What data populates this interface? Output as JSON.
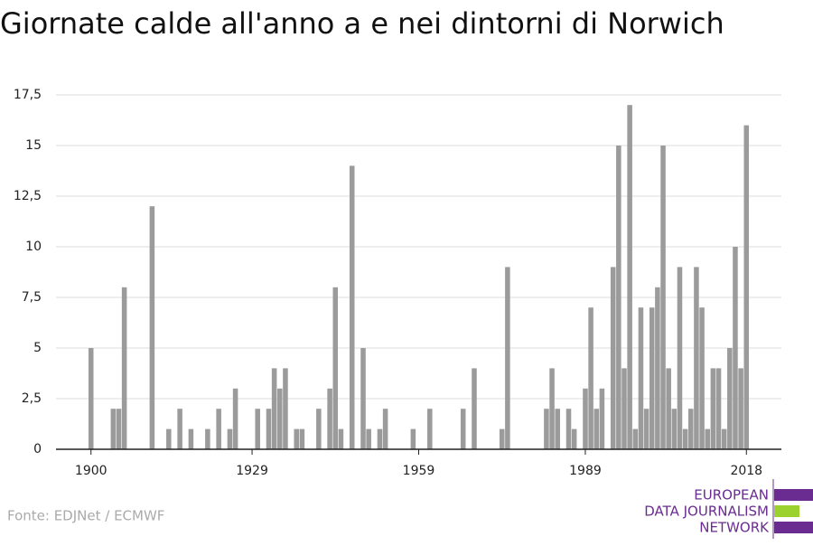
{
  "chart_data": {
    "type": "bar",
    "title": "Giornate calde all'anno a e nei dintorni di Norwich",
    "x": [
      1900,
      1904,
      1905,
      1906,
      1911,
      1914,
      1916,
      1918,
      1921,
      1923,
      1925,
      1926,
      1930,
      1932,
      1933,
      1934,
      1935,
      1937,
      1938,
      1941,
      1943,
      1944,
      1945,
      1947,
      1949,
      1950,
      1952,
      1953,
      1958,
      1961,
      1967,
      1969,
      1974,
      1975,
      1982,
      1983,
      1984,
      1986,
      1987,
      1989,
      1990,
      1991,
      1992,
      1994,
      1995,
      1996,
      1997,
      1998,
      1999,
      2000,
      2001,
      2002,
      2003,
      2004,
      2005,
      2006,
      2007,
      2008,
      2009,
      2010,
      2011,
      2012,
      2013,
      2014,
      2015,
      2016,
      2017,
      2018
    ],
    "values": [
      5,
      2,
      2,
      8,
      12,
      1,
      2,
      1,
      1,
      2,
      1,
      3,
      2,
      2,
      4,
      3,
      4,
      1,
      1,
      2,
      3,
      8,
      1,
      14,
      5,
      1,
      1,
      2,
      1,
      2,
      2,
      4,
      1,
      9,
      2,
      4,
      2,
      2,
      1,
      3,
      7,
      2,
      3,
      9,
      15,
      4,
      17,
      1,
      7,
      2,
      7,
      8,
      15,
      4,
      2,
      9,
      1,
      2,
      9,
      7,
      1,
      4,
      4,
      1,
      5,
      10,
      4,
      16
    ],
    "color": "#9b9b9b",
    "xlim": [
      1893.7,
      2024.3
    ],
    "xticks": [
      1900,
      1929,
      1959,
      1989,
      2018
    ],
    "ylim": [
      0,
      17.5
    ],
    "yticks": [
      0,
      {
        "value": 2.5,
        "label": "2,5"
      },
      5,
      {
        "value": 7.5,
        "label": "7,5"
      },
      10,
      {
        "value": 12.5,
        "label": "12,5"
      },
      15,
      {
        "value": 17.5,
        "label": "17,5"
      }
    ],
    "grid": true
  },
  "source": "Fonte: EDJNet / ECMWF",
  "logo": [
    "EUROPEAN",
    "DATA JOURNALISM",
    "NETWORK"
  ]
}
